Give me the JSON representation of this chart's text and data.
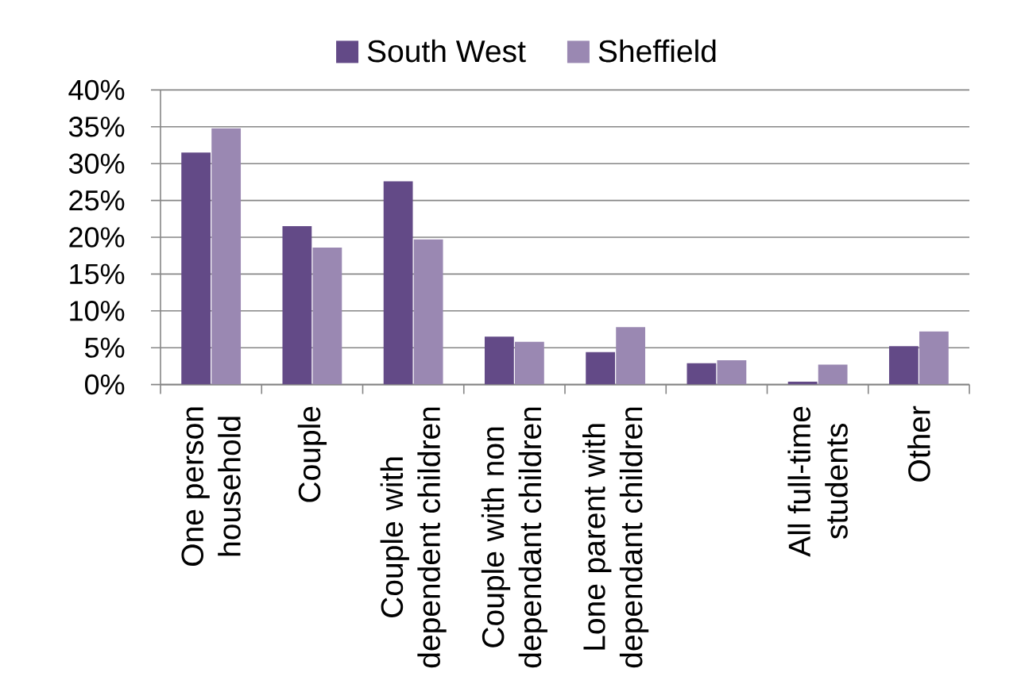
{
  "chart_data": {
    "type": "bar",
    "categories": [
      "One person household",
      "Couple",
      "Couple with dependent children",
      "Couple with non dependant children",
      "Lone parent with dependant children",
      null,
      "All full-time students",
      "Other"
    ],
    "series": [
      {
        "name": "South West",
        "color": "#634a87",
        "values": [
          31.5,
          21.5,
          27.6,
          6.5,
          4.4,
          2.9,
          0.4,
          5.2
        ]
      },
      {
        "name": "Sheffield",
        "color": "#9a88b2",
        "values": [
          34.8,
          18.6,
          19.7,
          5.8,
          7.8,
          3.3,
          2.7,
          7.2
        ]
      }
    ],
    "ylim": [
      0,
      40
    ],
    "yticks": [
      {
        "value": 0,
        "label": "0%"
      },
      {
        "value": 5,
        "label": "5%"
      },
      {
        "value": 10,
        "label": "10%"
      },
      {
        "value": 15,
        "label": "15%"
      },
      {
        "value": 20,
        "label": "20%"
      },
      {
        "value": 25,
        "label": "25%"
      },
      {
        "value": 30,
        "label": "30%"
      },
      {
        "value": 35,
        "label": "35%"
      },
      {
        "value": 40,
        "label": "40%"
      }
    ],
    "grid": "y",
    "legend": "top"
  }
}
